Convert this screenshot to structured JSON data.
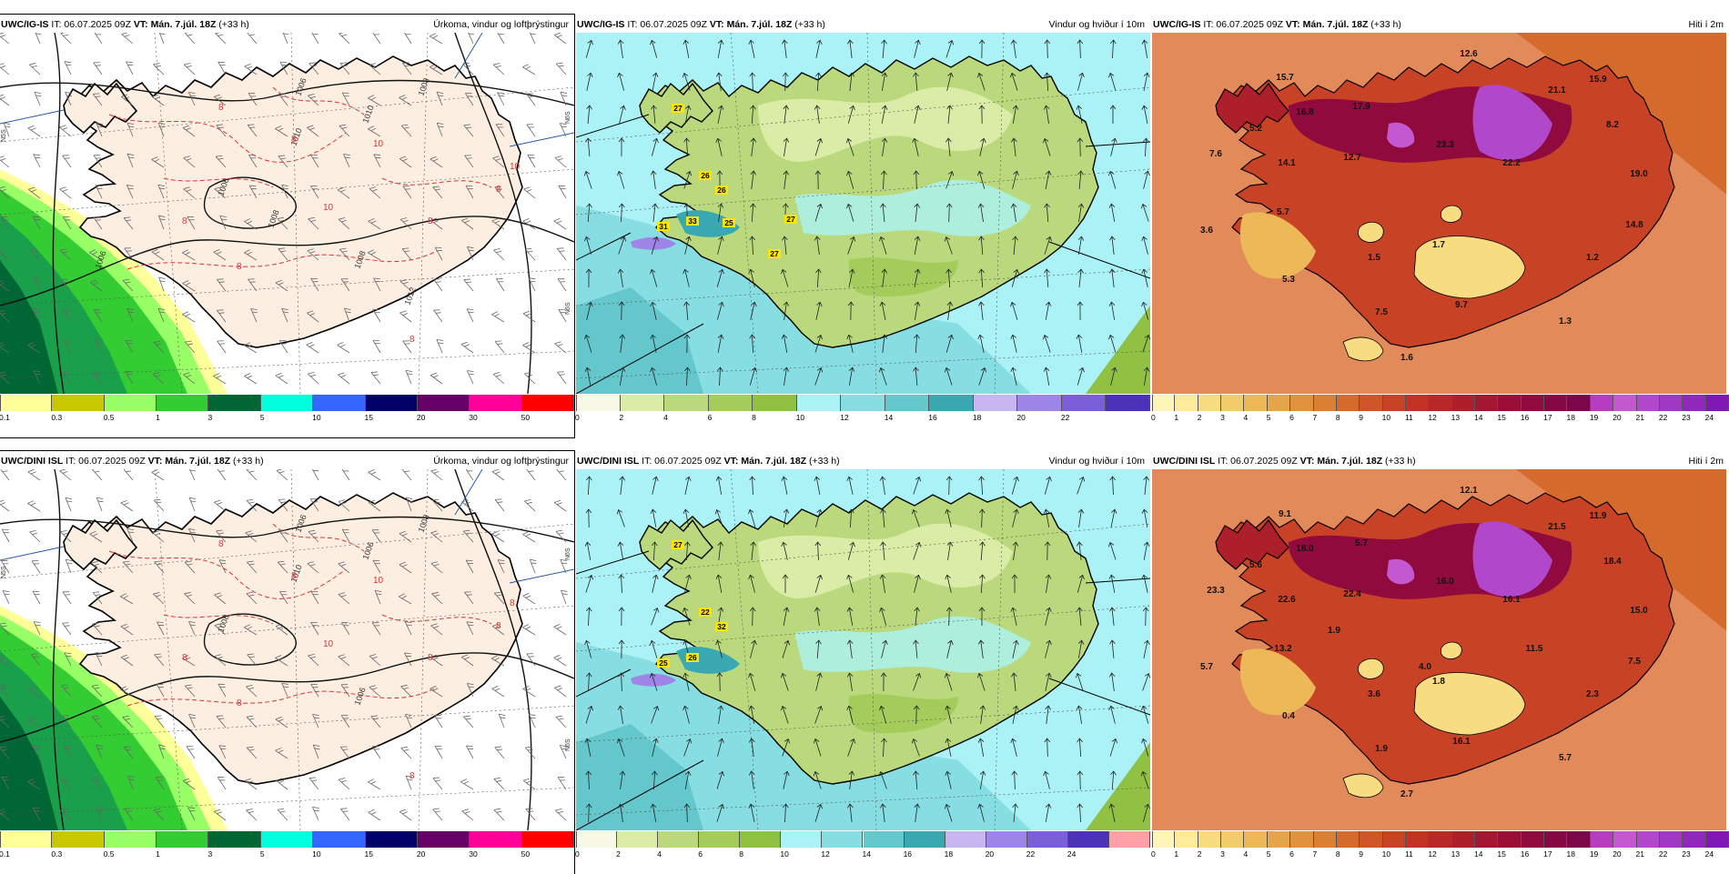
{
  "rows": [
    {
      "model": "UWC/IG-IS",
      "it": "IT: 06.07.2025 09Z",
      "vt": "VT: Mán. 7.júl. 18Z",
      "lead": "(+33 h)",
      "panels": {
        "precip": {
          "title": "Úrkoma, vindur og loftþrýstingur",
          "isobar_labels": [
            "1006",
            "1006",
            "1008",
            "1008",
            "1010",
            "1010",
            "1006",
            "1008",
            "1012"
          ],
          "temp_labels": [
            "8",
            "8",
            "10",
            "8",
            "8",
            "10",
            "8",
            "8",
            "8",
            "10"
          ],
          "lon_labels": [
            "N5S",
            "N6S",
            "N6S"
          ]
        },
        "wind": {
          "title": "Vindur og hviður í 10m",
          "gust_labels": [
            "27",
            "26",
            "26",
            "33",
            "31",
            "25",
            "27",
            "27"
          ]
        },
        "temp": {
          "title": "Hiti í 2m",
          "values": [
            "12.6",
            "15.7",
            "15.9",
            "16.8",
            "17.9",
            "21.1",
            "5.2",
            "8.2",
            "7.6",
            "23.3",
            "14.1",
            "12.7",
            "22.2",
            "19.0",
            "5.7",
            "3.6",
            "14.8",
            "1.5",
            "1.7",
            "1.2",
            "5.3",
            "7.5",
            "9.7",
            "1.3",
            "1.6"
          ]
        }
      }
    },
    {
      "model": "UWC/DINI ISL",
      "it": "IT: 06.07.2025 09Z",
      "vt": "VT: Mán. 7.júl. 18Z",
      "lead": "(+33 h)",
      "panels": {
        "precip": {
          "title": "Úrkoma, vindur og loftþrýstingur",
          "isobar_labels": [
            "1006",
            "1008",
            "1006",
            "1008",
            "1010",
            "1006"
          ],
          "temp_labels": [
            "8",
            "8",
            "10",
            "8",
            "8",
            "10",
            "8",
            "8",
            "8",
            "8"
          ],
          "lon_labels": [
            "N5S",
            "N6S",
            "N6S"
          ]
        },
        "wind": {
          "title": "Vindur og hviður í 10m",
          "gust_labels": [
            "27",
            "22",
            "32",
            "26",
            "25"
          ]
        },
        "temp": {
          "title": "Hiti í 2m",
          "values": [
            "12.1",
            "9.1",
            "11.9",
            "18.0",
            "5.7",
            "21.5",
            "5.6",
            "18.4",
            "23.3",
            "16.0",
            "22.6",
            "22.4",
            "16.1",
            "15.0",
            "13.2",
            "5.7",
            "7.5",
            "3.6",
            "1.8",
            "2.3",
            "0.4",
            "1.9",
            "16.1",
            "5.7",
            "2.7",
            "4.0",
            "11.5",
            "1.9"
          ]
        }
      }
    }
  ],
  "colorbars": {
    "precip": {
      "ticks": [
        "0.1",
        "0.3",
        "0.5",
        "1",
        "3",
        "5",
        "10",
        "15",
        "20",
        "30",
        "50"
      ],
      "colors": [
        "#ffff99",
        "#c8c800",
        "#99ff66",
        "#33cc33",
        "#006633",
        "#00ffdd",
        "#3366ff",
        "#000066",
        "#660066",
        "#ff0099",
        "#ff0000"
      ]
    },
    "wind_top": {
      "ticks": [
        "0",
        "2",
        "4",
        "6",
        "8",
        "10",
        "12",
        "14",
        "16",
        "18",
        "20",
        "22"
      ],
      "colors": [
        "#f7f9e6",
        "#dbeca7",
        "#b9d97c",
        "#a4cc5b",
        "#90c142",
        "#aaf2f5",
        "#86dde2",
        "#63c7cc",
        "#3aa8b0",
        "#c7b6f2",
        "#9e86e8",
        "#7a5fd8",
        "#4b32b8"
      ]
    },
    "wind_bottom": {
      "ticks": [
        "0",
        "2",
        "4",
        "6",
        "8",
        "10",
        "12",
        "14",
        "16",
        "18",
        "20",
        "22",
        "24"
      ],
      "colors": [
        "#f7f9e6",
        "#dbeca7",
        "#b9d97c",
        "#a4cc5b",
        "#90c142",
        "#aaf2f5",
        "#86dde2",
        "#63c7cc",
        "#3aa8b0",
        "#c7b6f2",
        "#9e86e8",
        "#7a5fd8",
        "#4b32b8",
        "#ff9fa8"
      ]
    },
    "temp": {
      "ticks": [
        "0",
        "1",
        "2",
        "3",
        "4",
        "5",
        "6",
        "7",
        "8",
        "9",
        "10",
        "11",
        "12",
        "13",
        "14",
        "15",
        "16",
        "17",
        "18",
        "19",
        "20",
        "21",
        "22",
        "23",
        "24"
      ],
      "colors": [
        "#fff5b8",
        "#ffeb99",
        "#f8dc82",
        "#f2cb6b",
        "#ecb858",
        "#e6a54a",
        "#e0923e",
        "#da7f34",
        "#d46a2c",
        "#ce5628",
        "#c84326",
        "#c23326",
        "#b82828",
        "#ae1f2c",
        "#a41632",
        "#9a0e38",
        "#900a3e",
        "#860844",
        "#7c064a",
        "#b63cc0",
        "#c358d0",
        "#b148cc",
        "#a138c4",
        "#9128bc",
        "#8018b4"
      ]
    }
  }
}
